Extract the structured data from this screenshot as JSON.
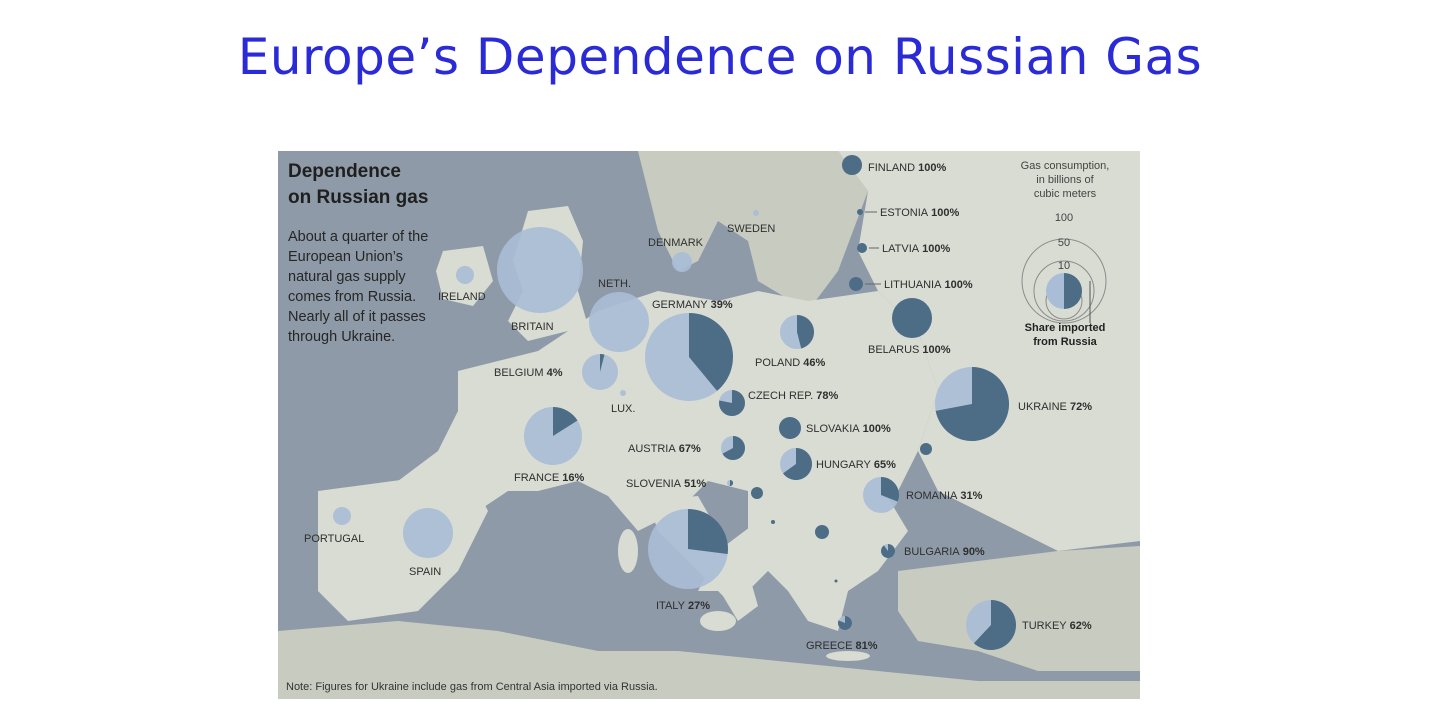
{
  "slide_title": "Europe’s Dependence on Russian Gas",
  "headline": {
    "line1": "Dependence",
    "line2": "on Russian gas"
  },
  "description": "About a quarter of the European Union’s natural gas supply comes from Russia. Nearly all of it passes through Ukraine.",
  "legend": {
    "title_line1": "Gas consumption,",
    "title_line2": "in billions of",
    "title_line3": "cubic meters",
    "values": [
      "100",
      "50",
      "10"
    ],
    "share_line1": "Share imported",
    "share_line2": "from Russia"
  },
  "note": "Note: Figures for Ukraine include gas from Central Asia imported via Russia.",
  "colors": {
    "title": "#2a2ad6",
    "sea": "#8e9aa8",
    "land_highlight": "#d9dcd3",
    "land_other": "#c8ccc0",
    "bubble_total": "#a9bdd6",
    "bubble_russian": "#4d6c86"
  },
  "countries": [
    {
      "name": "FINLAND",
      "share": "100%"
    },
    {
      "name": "ESTONIA",
      "share": "100%"
    },
    {
      "name": "LATVIA",
      "share": "100%"
    },
    {
      "name": "LITHUANIA",
      "share": "100%"
    },
    {
      "name": "BELARUS",
      "share": "100%"
    },
    {
      "name": "UKRAINE",
      "share": "72%"
    },
    {
      "name": "POLAND",
      "share": "46%"
    },
    {
      "name": "GERMANY",
      "share": "39%"
    },
    {
      "name": "CZECH REP.",
      "share": "78%"
    },
    {
      "name": "SLOVAKIA",
      "share": "100%"
    },
    {
      "name": "HUNGARY",
      "share": "65%"
    },
    {
      "name": "AUSTRIA",
      "share": "67%"
    },
    {
      "name": "SLOVENIA",
      "share": "51%"
    },
    {
      "name": "ROMANIA",
      "share": "31%"
    },
    {
      "name": "BULGARIA",
      "share": "90%"
    },
    {
      "name": "GREECE",
      "share": "81%"
    },
    {
      "name": "TURKEY",
      "share": "62%"
    },
    {
      "name": "ITALY",
      "share": "27%"
    },
    {
      "name": "FRANCE",
      "share": "16%"
    },
    {
      "name": "BELGIUM",
      "share": "4%"
    },
    {
      "name": "NETH.",
      "share": ""
    },
    {
      "name": "LUX.",
      "share": ""
    },
    {
      "name": "DENMARK",
      "share": ""
    },
    {
      "name": "SWEDEN",
      "share": ""
    },
    {
      "name": "BRITAIN",
      "share": ""
    },
    {
      "name": "IRELAND",
      "share": ""
    },
    {
      "name": "SPAIN",
      "share": ""
    },
    {
      "name": "PORTUGAL",
      "share": ""
    }
  ]
}
